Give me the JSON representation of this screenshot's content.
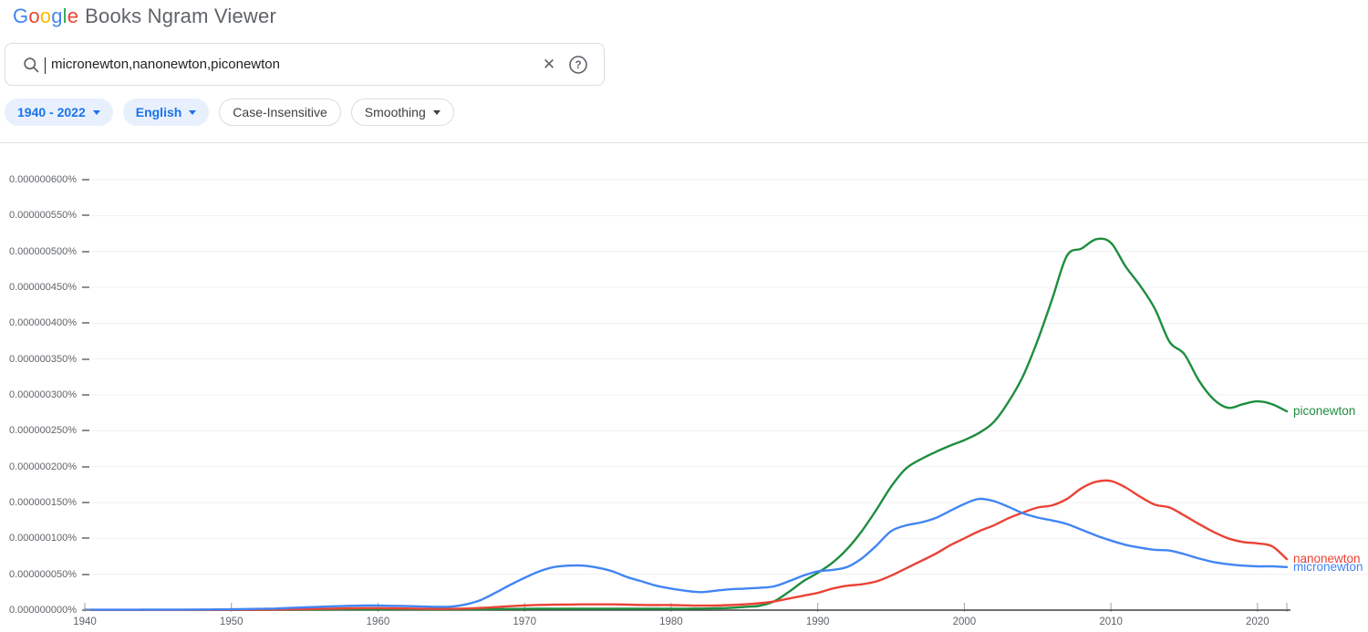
{
  "header": {
    "logo_letters": [
      {
        "ch": "G",
        "color": "#4285F4"
      },
      {
        "ch": "o",
        "color": "#EA4335"
      },
      {
        "ch": "o",
        "color": "#FBBC05"
      },
      {
        "ch": "g",
        "color": "#4285F4"
      },
      {
        "ch": "l",
        "color": "#34A853"
      },
      {
        "ch": "e",
        "color": "#EA4335"
      }
    ],
    "product_name": "Books Ngram Viewer"
  },
  "search": {
    "value": "micronewton,nanonewton,piconewton",
    "placeholder": ""
  },
  "icons": {
    "clear_glyph": "✕",
    "help_glyph": "?"
  },
  "filters": {
    "chips": [
      {
        "label": "1940 - 2022",
        "has_caret": true,
        "style": "active"
      },
      {
        "label": "English",
        "has_caret": true,
        "style": "active"
      },
      {
        "label": "Case-Insensitive",
        "has_caret": false,
        "style": "plain"
      },
      {
        "label": "Smoothing",
        "has_caret": true,
        "style": "plain"
      }
    ]
  },
  "chart_data": {
    "type": "line",
    "title": "",
    "xlabel": "",
    "ylabel": "",
    "unit": "percent",
    "values_unit": "1e-9 percent (plot values below are billionths of a percent)",
    "x_range": [
      1940,
      2022
    ],
    "grid": true,
    "legend_position": "right-end-of-line",
    "y_ticks_1e9": [
      600,
      550,
      500,
      450,
      400,
      350,
      300,
      250,
      200,
      150,
      100,
      50,
      0
    ],
    "y_tick_labels": [
      "0.000000600%",
      "0.000000550%",
      "0.000000500%",
      "0.000000450%",
      "0.000000400%",
      "0.000000350%",
      "0.000000300%",
      "0.000000250%",
      "0.000000200%",
      "0.000000150%",
      "0.000000100%",
      "0.000000050%",
      "0.000000000%"
    ],
    "x_ticks": [
      1940,
      1950,
      1960,
      1970,
      1980,
      1990,
      2000,
      2010,
      2020
    ],
    "x_tick_labels": [
      "1940",
      "1950",
      "1960",
      "1970",
      "1980",
      "1990",
      "2000",
      "2010",
      "2020"
    ],
    "start_year": 1940,
    "end_year": 2022,
    "series": [
      {
        "name": "piconewton",
        "label": "piconewton",
        "color": "#1e8e3e",
        "values": [
          0.3,
          0.3,
          0.3,
          0.3,
          0.3,
          0.3,
          0.3,
          0.3,
          0.3,
          0.3,
          0.4,
          0.4,
          0.5,
          0.5,
          0.6,
          0.7,
          0.8,
          0.9,
          1,
          1,
          1,
          1,
          1,
          1,
          1,
          1,
          1,
          1.2,
          1.4,
          1.6,
          1.8,
          2,
          2,
          2,
          2,
          2,
          2,
          2,
          2,
          2,
          2,
          2,
          2.2,
          2.5,
          3,
          4.5,
          6,
          12,
          25,
          40,
          52,
          66,
          85,
          110,
          140,
          172,
          197,
          210,
          220,
          229,
          237,
          247,
          262,
          290,
          326,
          376,
          434,
          494,
          504,
          517,
          512,
          479,
          452,
          420,
          374,
          357,
          320,
          294,
          282,
          287,
          291,
          287,
          277
        ]
      },
      {
        "name": "nanonewton",
        "label": "nanonewton",
        "color": "#ea4335",
        "values": [
          0.3,
          0.3,
          0.3,
          0.3,
          0.3,
          0.3,
          0.3,
          0.4,
          0.4,
          0.4,
          0.5,
          0.5,
          0.6,
          0.8,
          1,
          1.3,
          1.8,
          2.2,
          2.6,
          2.8,
          2.8,
          2.6,
          2.3,
          2,
          1.8,
          1.8,
          2.2,
          3,
          4.2,
          5.5,
          6.5,
          7.2,
          7.6,
          7.8,
          8,
          8,
          8,
          7.6,
          7.2,
          7,
          7,
          6.6,
          6.2,
          6.4,
          7,
          8,
          9.5,
          12,
          16,
          20,
          24,
          30,
          34,
          36,
          40,
          48,
          58,
          68,
          78,
          90,
          100,
          110,
          118,
          128,
          136,
          143,
          146,
          155,
          170,
          179,
          180,
          171,
          158,
          147,
          143,
          132,
          120,
          109,
          100,
          95,
          93,
          89,
          71
        ]
      },
      {
        "name": "micronewton",
        "label": "micronewton",
        "color": "#4285f4",
        "values": [
          0.5,
          0.5,
          0.5,
          0.5,
          0.6,
          0.6,
          0.7,
          0.8,
          0.9,
          1,
          1.2,
          1.5,
          1.8,
          2.2,
          3,
          3.8,
          4.6,
          5.4,
          6,
          6.3,
          6.3,
          6,
          5.6,
          5,
          4.6,
          4.8,
          8,
          14,
          24,
          35,
          45,
          54,
          60,
          62,
          62,
          59,
          54,
          46,
          40,
          34,
          30,
          27,
          25,
          27,
          29,
          30,
          31,
          33,
          40,
          48,
          54,
          56,
          60,
          72,
          90,
          110,
          118,
          122,
          128,
          138,
          148,
          155,
          152,
          144,
          135,
          129,
          125,
          120,
          112,
          104,
          97,
          91,
          87,
          84,
          83,
          78,
          72,
          67,
          64,
          62,
          61,
          61,
          60
        ]
      }
    ]
  }
}
